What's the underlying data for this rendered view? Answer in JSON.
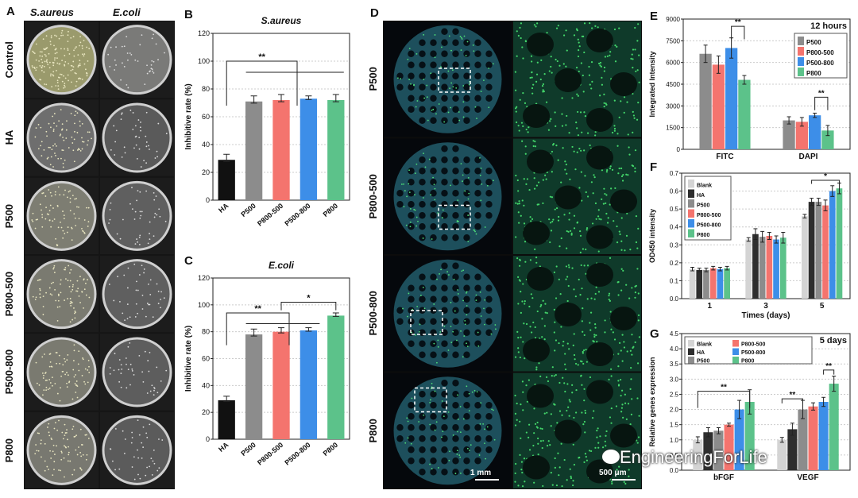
{
  "panels": {
    "A": {
      "letter": "A",
      "col_labels": [
        "S.aureus",
        "E.coli"
      ],
      "row_labels": [
        "Control",
        "HA",
        "P500",
        "P800-500",
        "P500-800",
        "P800"
      ]
    },
    "D": {
      "letter": "D",
      "row_labels": [
        "P500",
        "P800-500",
        "P500-800",
        "P800"
      ],
      "scale_left": "1 mm",
      "scale_right": "500 μm"
    }
  },
  "watermark": "EngineeringForLife",
  "chart_data": [
    {
      "id": "B",
      "letter": "B",
      "type": "bar",
      "title": "S.aureus",
      "ylabel": "Inhibitive rate (%)",
      "ylim": [
        0,
        120
      ],
      "yticks": [
        0,
        20,
        40,
        60,
        80,
        100,
        120
      ],
      "categories": [
        "HA",
        "P500",
        "P800-500",
        "P500-800",
        "P800"
      ],
      "values": [
        29,
        71,
        72,
        73,
        72
      ],
      "errors": [
        4,
        4,
        4,
        2,
        4
      ],
      "colors": [
        "#111111",
        "#8c8c8c",
        "#f4746e",
        "#3d8ee8",
        "#5cc28a"
      ],
      "significance": [
        "**"
      ]
    },
    {
      "id": "C",
      "letter": "C",
      "type": "bar",
      "title": "E.coli",
      "ylabel": "Inhibitive rate (%)",
      "ylim": [
        0,
        120
      ],
      "yticks": [
        0,
        20,
        40,
        60,
        80,
        100,
        120
      ],
      "categories": [
        "HA",
        "P500",
        "P800-500",
        "P500-800",
        "P800"
      ],
      "values": [
        29,
        78,
        80,
        81,
        92
      ],
      "errors": [
        3,
        4,
        3,
        2,
        2
      ],
      "colors": [
        "#111111",
        "#8c8c8c",
        "#f4746e",
        "#3d8ee8",
        "#5cc28a"
      ],
      "significance": [
        "**",
        "*"
      ]
    },
    {
      "id": "E",
      "letter": "E",
      "type": "bar",
      "annotation": "12 hours",
      "ylabel": "Integrated Intensity",
      "ylim": [
        0,
        9000
      ],
      "yticks": [
        0,
        1500,
        3000,
        4500,
        6000,
        7500,
        9000
      ],
      "categories": [
        "FITC",
        "DAPI"
      ],
      "series": [
        {
          "name": "P500",
          "color": "#8c8c8c",
          "values": [
            6600,
            2000
          ],
          "errors": [
            600,
            250
          ]
        },
        {
          "name": "P800-500",
          "color": "#f4746e",
          "values": [
            5850,
            1900
          ],
          "errors": [
            600,
            300
          ]
        },
        {
          "name": "P500-800",
          "color": "#3d8ee8",
          "values": [
            7000,
            2350
          ],
          "errors": [
            700,
            150
          ]
        },
        {
          "name": "P800",
          "color": "#5cc28a",
          "values": [
            4800,
            1300
          ],
          "errors": [
            300,
            350
          ]
        }
      ],
      "significance": [
        "**",
        "**"
      ],
      "legend": "top-right"
    },
    {
      "id": "F",
      "letter": "F",
      "type": "bar",
      "xlabel": "Times (days)",
      "ylabel": "OD450 intensity",
      "ylim": [
        0,
        0.7
      ],
      "yticks": [
        0.0,
        0.1,
        0.2,
        0.3,
        0.4,
        0.5,
        0.6,
        0.7
      ],
      "categories": [
        "1",
        "3",
        "5"
      ],
      "series": [
        {
          "name": "Blank",
          "color": "#d4d4d4",
          "values": [
            0.165,
            0.33,
            0.46
          ],
          "errors": [
            0.01,
            0.01,
            0.01
          ]
        },
        {
          "name": "HA",
          "color": "#2e2e2e",
          "values": [
            0.16,
            0.36,
            0.54
          ],
          "errors": [
            0.01,
            0.03,
            0.02
          ]
        },
        {
          "name": "P500",
          "color": "#8c8c8c",
          "values": [
            0.16,
            0.345,
            0.54
          ],
          "errors": [
            0.01,
            0.03,
            0.02
          ]
        },
        {
          "name": "P800-500",
          "color": "#f4746e",
          "values": [
            0.17,
            0.35,
            0.52
          ],
          "errors": [
            0.01,
            0.02,
            0.03
          ]
        },
        {
          "name": "P500-800",
          "color": "#3d8ee8",
          "values": [
            0.165,
            0.33,
            0.6
          ],
          "errors": [
            0.01,
            0.02,
            0.03
          ]
        },
        {
          "name": "P800",
          "color": "#5cc28a",
          "values": [
            0.17,
            0.34,
            0.615
          ],
          "errors": [
            0.01,
            0.03,
            0.03
          ]
        }
      ],
      "significance": [
        "*"
      ],
      "legend": "top-left"
    },
    {
      "id": "G",
      "letter": "G",
      "type": "bar",
      "annotation": "5 days",
      "ylabel": "Relative genes expression",
      "ylim": [
        0,
        4.5
      ],
      "yticks": [
        0.0,
        0.5,
        1.0,
        1.5,
        2.0,
        2.5,
        3.0,
        3.5,
        4.0,
        4.5
      ],
      "categories": [
        "bFGF",
        "VEGF"
      ],
      "series": [
        {
          "name": "Blank",
          "color": "#d4d4d4",
          "values": [
            1.0,
            1.0
          ],
          "errors": [
            0.1,
            0.08
          ]
        },
        {
          "name": "HA",
          "color": "#2e2e2e",
          "values": [
            1.25,
            1.35
          ],
          "errors": [
            0.15,
            0.2
          ]
        },
        {
          "name": "P500",
          "color": "#8c8c8c",
          "values": [
            1.3,
            2.0
          ],
          "errors": [
            0.1,
            0.3
          ]
        },
        {
          "name": "P800-500",
          "color": "#f4746e",
          "values": [
            1.5,
            2.1
          ],
          "errors": [
            0.05,
            0.12
          ]
        },
        {
          "name": "P500-800",
          "color": "#3d8ee8",
          "values": [
            2.0,
            2.25
          ],
          "errors": [
            0.3,
            0.15
          ]
        },
        {
          "name": "P800",
          "color": "#5cc28a",
          "values": [
            2.25,
            2.85
          ],
          "errors": [
            0.4,
            0.25
          ]
        }
      ],
      "significance": [
        "**",
        "**",
        "**"
      ],
      "legend": "top-left"
    }
  ]
}
